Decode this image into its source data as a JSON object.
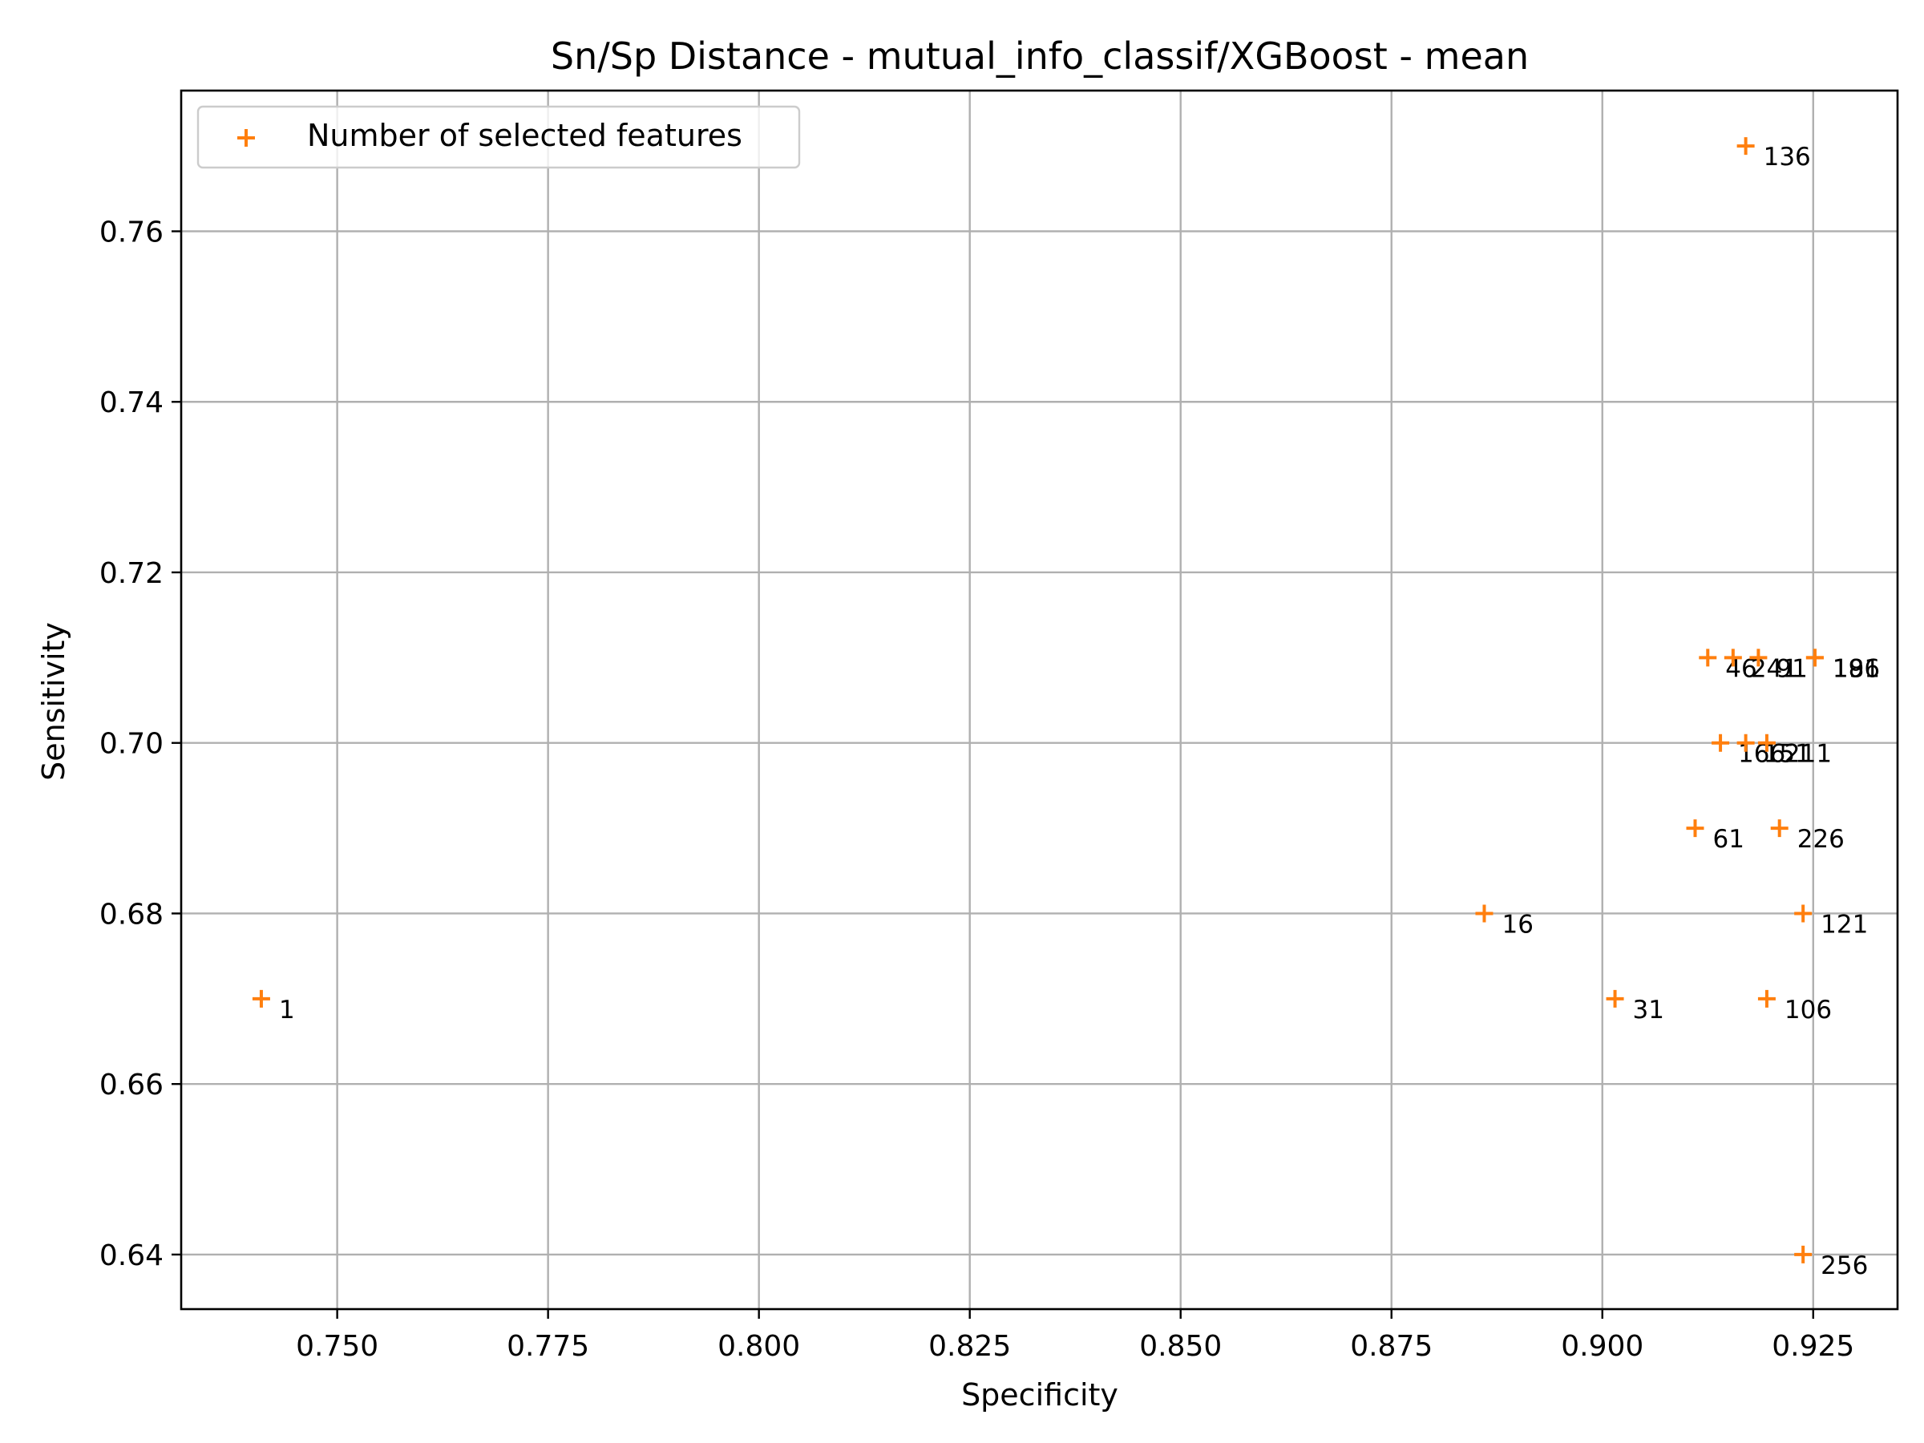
{
  "chart_data": {
    "type": "scatter",
    "title": "Sn/Sp Distance - mutual_info_classif/XGBoost - mean",
    "xlabel": "Specificity",
    "ylabel": "Sensitivity",
    "xlim": [
      0.7315,
      0.935
    ],
    "ylim": [
      0.6336,
      0.7765
    ],
    "xticks": [
      "0.750",
      "0.775",
      "0.800",
      "0.825",
      "0.850",
      "0.875",
      "0.900",
      "0.925"
    ],
    "yticks": [
      "0.64",
      "0.66",
      "0.68",
      "0.70",
      "0.72",
      "0.74",
      "0.76"
    ],
    "grid": true,
    "legend": {
      "position": "top-left",
      "entries": [
        "Number of selected features"
      ]
    },
    "marker_color": "#ff7f0e",
    "series": [
      {
        "name": "Number of selected features",
        "marker": "+",
        "points": [
          {
            "x": 0.741,
            "y": 0.67,
            "label": "1"
          },
          {
            "x": 0.886,
            "y": 0.68,
            "label": "16"
          },
          {
            "x": 0.9015,
            "y": 0.67,
            "label": "31"
          },
          {
            "x": 0.9125,
            "y": 0.71,
            "label": "46"
          },
          {
            "x": 0.911,
            "y": 0.69,
            "label": "61"
          },
          {
            "x": 0.9155,
            "y": 0.71,
            "label": "241"
          },
          {
            "x": 0.9185,
            "y": 0.71,
            "label": "91"
          },
          {
            "x": 0.9195,
            "y": 0.67,
            "label": "106"
          },
          {
            "x": 0.9238,
            "y": 0.68,
            "label": "121"
          },
          {
            "x": 0.917,
            "y": 0.77,
            "label": "136"
          },
          {
            "x": 0.914,
            "y": 0.7,
            "label": "166"
          },
          {
            "x": 0.917,
            "y": 0.7,
            "label": "151"
          },
          {
            "x": 0.9195,
            "y": 0.7,
            "label": "211"
          },
          {
            "x": 0.9252,
            "y": 0.71,
            "label": "181"
          },
          {
            "x": 0.9252,
            "y": 0.71,
            "label": "196"
          },
          {
            "x": 0.921,
            "y": 0.69,
            "label": "226"
          },
          {
            "x": 0.9238,
            "y": 0.64,
            "label": "256"
          }
        ]
      }
    ]
  }
}
